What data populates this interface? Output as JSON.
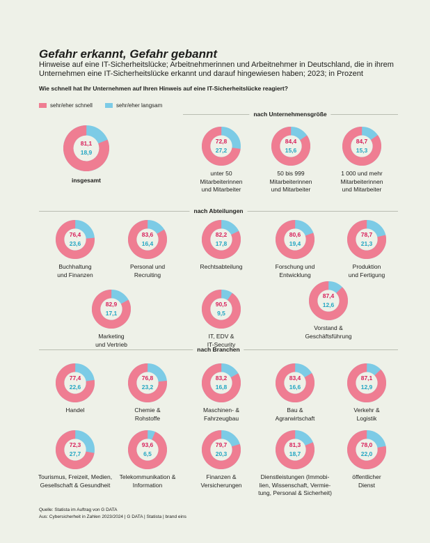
{
  "title": "Gefahr erkannt, Gefahr gebannt",
  "subtitle": "Hinweise auf eine IT-Sicherheitslücke; Arbeitnehmerinnen und Arbeitnehmer in Deutschland, die in ihrem Unternehmen eine IT-Sicherheitslücke erkannt und darauf hingewiesen haben; 2023; in Prozent",
  "question": "Wie schnell hat Ihr Unternehmen auf Ihren Hinweis auf eine IT-Sicherheitslücke reagiert?",
  "legend": {
    "fast": "sehr/eher schnell",
    "slow": "sehr/eher langsam"
  },
  "colors": {
    "fast": "#ef7d92",
    "slow": "#7ccbe6",
    "fast_text": "#d81f5a",
    "slow_text": "#22a5c2"
  },
  "sections": {
    "size": "nach Unternehmensgröße",
    "departments": "nach Abteilungen",
    "industries": "nach Branchen"
  },
  "source": {
    "line1": "Quelle: Statista im Auftrag von G DATA",
    "line2": "Aus: Cybersicherheit in Zahlen 2023/2024 | G DATA | Statista | brand eins"
  },
  "chart_data": {
    "type": "pie",
    "series_names": [
      "sehr/eher schnell",
      "sehr/eher langsam"
    ],
    "groups": [
      {
        "section": "total",
        "items": [
          {
            "label": "insgesamt",
            "fast": "81,1",
            "slow": "18,9"
          }
        ]
      },
      {
        "section": "nach Unternehmensgröße",
        "items": [
          {
            "label": "unter 50\nMitarbeiterinnen\nund Mitarbeiter",
            "fast": "72,8",
            "slow": "27,2"
          },
          {
            "label": "50 bis 999\nMitarbeiterinnen\nund Mitarbeiter",
            "fast": "84,4",
            "slow": "15,6"
          },
          {
            "label": "1 000 und mehr\nMitarbeiterinnen\nund Mitarbeiter",
            "fast": "84,7",
            "slow": "15,3"
          }
        ]
      },
      {
        "section": "nach Abteilungen",
        "items": [
          {
            "label": "Buchhaltung\nund Finanzen",
            "fast": "76,4",
            "slow": "23,6"
          },
          {
            "label": "Personal und\nRecruiting",
            "fast": "83,6",
            "slow": "16,4"
          },
          {
            "label": "Rechtsabteilung",
            "fast": "82,2",
            "slow": "17,8"
          },
          {
            "label": "Forschung und\nEntwicklung",
            "fast": "80,6",
            "slow": "19,4"
          },
          {
            "label": "Produktion\nund Fertigung",
            "fast": "78,7",
            "slow": "21,3"
          },
          {
            "label": "Marketing\nund Vertrieb",
            "fast": "82,9",
            "slow": "17,1"
          },
          {
            "label": "IT, EDV &\nIT-Security",
            "fast": "90,5",
            "slow": "9,5"
          },
          {
            "label": "Vorstand &\nGeschäftsführung",
            "fast": "87,4",
            "slow": "12,6"
          }
        ]
      },
      {
        "section": "nach Branchen",
        "items": [
          {
            "label": "Handel",
            "fast": "77,4",
            "slow": "22,6"
          },
          {
            "label": "Chemie &\nRohstoffe",
            "fast": "76,8",
            "slow": "23,2"
          },
          {
            "label": "Maschinen- &\nFahrzeugbau",
            "fast": "83,2",
            "slow": "16,8"
          },
          {
            "label": "Bau &\nAgrarwirtschaft",
            "fast": "83,4",
            "slow": "16,6"
          },
          {
            "label": "Verkehr &\nLogistik",
            "fast": "87,1",
            "slow": "12,9"
          },
          {
            "label": "Tourismus, Freizeit, Medien,\nGesellschaft & Gesundheit",
            "fast": "72,3",
            "slow": "27,7"
          },
          {
            "label": "Telekommunikation &\nInformation",
            "fast": "93,6",
            "slow": "6,5"
          },
          {
            "label": "Finanzen &\nVersicherungen",
            "fast": "79,7",
            "slow": "20,3"
          },
          {
            "label": "Dienstleistungen (Immobi-\nlien, Wissenschaft, Vermie-\ntung, Personal & Sicherheit)",
            "fast": "81,3",
            "slow": "18,7"
          },
          {
            "label": "öffentlicher\nDienst",
            "fast": "78,0",
            "slow": "22,0"
          }
        ]
      }
    ]
  }
}
